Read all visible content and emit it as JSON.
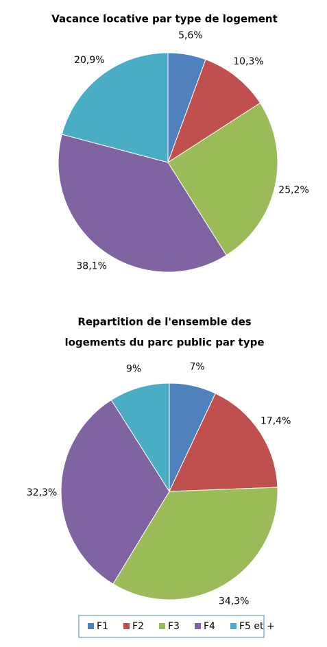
{
  "chart_data": [
    {
      "type": "pie",
      "title": "Vacance locative par type de logement",
      "categories": [
        "F1",
        "F2",
        "F3",
        "F4",
        "F5 et +"
      ],
      "values": [
        5.6,
        10.3,
        25.2,
        38.1,
        20.9
      ],
      "value_labels": [
        "5,6%",
        "10,3%",
        "25,2%",
        "38,1%",
        "20,9%"
      ],
      "colors": [
        "#4f81bd",
        "#c0504d",
        "#9bbb59",
        "#8064a2",
        "#4bacc6"
      ]
    },
    {
      "type": "pie",
      "title": [
        "Repartition de l'ensemble des",
        "logements du parc  public par type"
      ],
      "categories": [
        "F1",
        "F2",
        "F3",
        "F4",
        "F5 et +"
      ],
      "values": [
        7,
        17.4,
        34.3,
        32.3,
        9
      ],
      "value_labels": [
        "7%",
        "17,4%",
        "34,3%",
        "32,3%",
        "9%"
      ],
      "colors": [
        "#4f81bd",
        "#c0504d",
        "#9bbb59",
        "#8064a2",
        "#4bacc6"
      ],
      "legend": "bottom"
    }
  ]
}
